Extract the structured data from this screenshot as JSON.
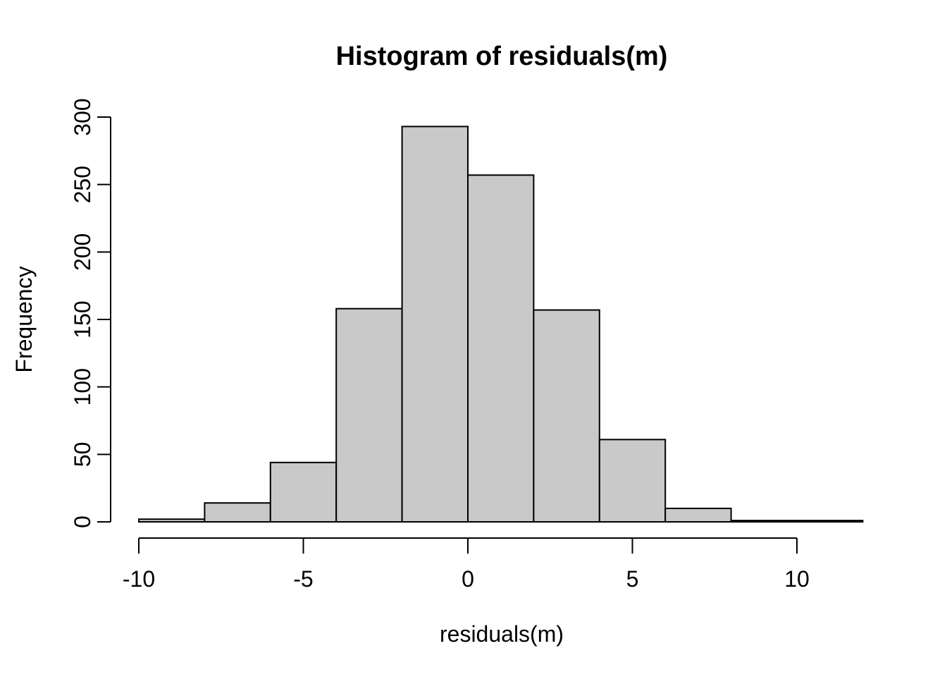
{
  "chart_data": {
    "type": "bar",
    "subtype": "histogram",
    "title": "Histogram of residuals(m)",
    "xlabel": "residuals(m)",
    "ylabel": "Frequency",
    "bin_edges": [
      -10,
      -8,
      -6,
      -4,
      -2,
      0,
      2,
      4,
      6,
      8,
      10,
      12
    ],
    "frequencies": [
      2,
      14,
      44,
      158,
      293,
      257,
      157,
      61,
      10,
      1,
      1
    ],
    "x_tick_labels": [
      "-10",
      "-5",
      "0",
      "5",
      "10"
    ],
    "x_tick_values": [
      -10,
      -5,
      0,
      5,
      10
    ],
    "y_tick_labels": [
      "0",
      "50",
      "100",
      "150",
      "200",
      "250",
      "300"
    ],
    "y_tick_values": [
      0,
      50,
      100,
      150,
      200,
      250,
      300
    ],
    "xlim": [
      -10,
      12
    ],
    "ylim": [
      0,
      300
    ],
    "grid": false,
    "legend": "none",
    "colors": {
      "bar_fill": "#c9c9c9",
      "bar_stroke": "#000000",
      "axis": "#000000",
      "text": "#000000",
      "background": "#ffffff"
    }
  }
}
